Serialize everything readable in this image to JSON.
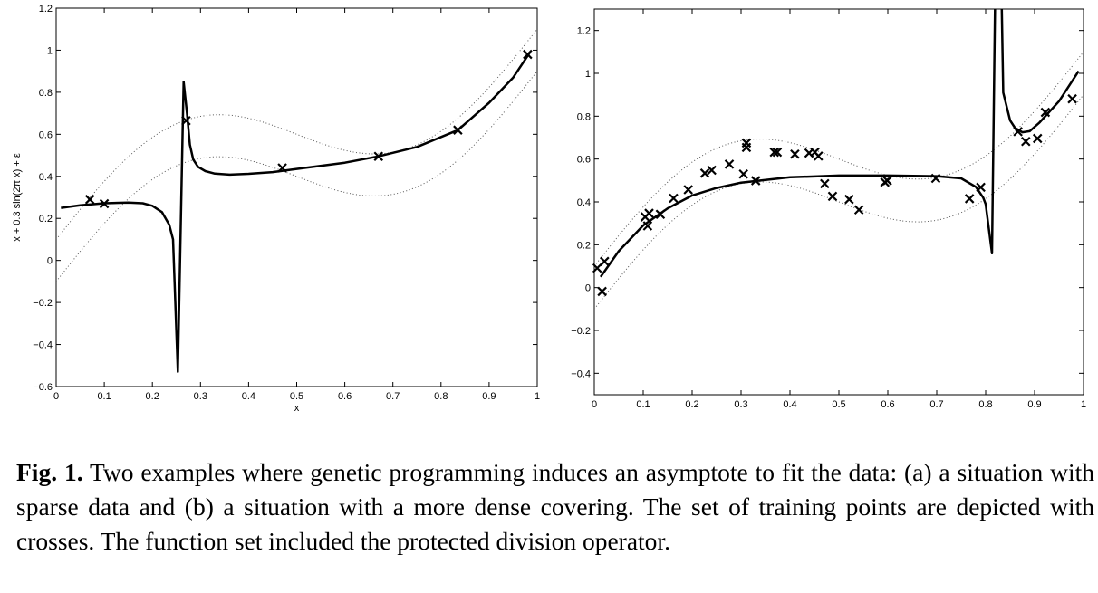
{
  "chart_data": [
    {
      "type": "scatter",
      "panel": "a",
      "xlabel": "x",
      "ylabel": "x + 0.3 sin(2π x) + ε",
      "xlim": [
        0,
        1
      ],
      "ylim": [
        -0.6,
        1.2
      ],
      "xticks": [
        "0",
        "0.1",
        "0.2",
        "0.3",
        "0.4",
        "0.5",
        "0.6",
        "0.7",
        "0.8",
        "0.9",
        "1"
      ],
      "yticks": [
        "−0.6",
        "−0.4",
        "−0.2",
        "0",
        "0.2",
        "0.4",
        "0.6",
        "0.8",
        "1",
        "1.2"
      ],
      "band": {
        "function": "x + 0.3 sin(2πx) ± 0.1",
        "style": "dotted"
      },
      "points": [
        [
          0.07,
          0.29
        ],
        [
          0.1,
          0.27
        ],
        [
          0.27,
          0.665
        ],
        [
          0.47,
          0.44
        ],
        [
          0.67,
          0.495
        ],
        [
          0.835,
          0.62
        ],
        [
          0.98,
          0.98
        ]
      ],
      "fit_curve": [
        [
          [
            0.01,
            0.25
          ],
          [
            0.05,
            0.262
          ],
          [
            0.1,
            0.272
          ],
          [
            0.15,
            0.275
          ],
          [
            0.18,
            0.272
          ],
          [
            0.2,
            0.26
          ],
          [
            0.22,
            0.23
          ],
          [
            0.235,
            0.17
          ],
          [
            0.243,
            0.1
          ],
          [
            0.253,
            -0.53
          ],
          [
            0.265,
            0.85
          ],
          [
            0.272,
            0.7
          ],
          [
            0.278,
            0.55
          ],
          [
            0.285,
            0.48
          ],
          [
            0.295,
            0.445
          ],
          [
            0.31,
            0.425
          ],
          [
            0.33,
            0.413
          ],
          [
            0.36,
            0.408
          ],
          [
            0.4,
            0.412
          ],
          [
            0.45,
            0.42
          ],
          [
            0.5,
            0.435
          ],
          [
            0.6,
            0.465
          ],
          [
            0.67,
            0.495
          ],
          [
            0.75,
            0.54
          ],
          [
            0.835,
            0.62
          ],
          [
            0.9,
            0.75
          ],
          [
            0.95,
            0.87
          ],
          [
            0.985,
            0.99
          ]
        ]
      ]
    },
    {
      "type": "scatter",
      "panel": "b",
      "xlim": [
        0,
        1
      ],
      "ylim": [
        -0.5,
        1.3
      ],
      "xticks": [
        "0",
        "0.1",
        "0.2",
        "0.3",
        "0.4",
        "0.5",
        "0.6",
        "0.7",
        "0.8",
        "0.9",
        "1"
      ],
      "yticks": [
        "−0.4",
        "−0.2",
        "0",
        "0.2",
        "0.4",
        "0.6",
        "0.8",
        "1",
        "1.2"
      ],
      "band": {
        "function": "x + 0.3 sin(2πx) ± 0.1",
        "style": "dotted"
      },
      "points": [
        [
          0.006,
          0.091
        ],
        [
          0.021,
          0.122
        ],
        [
          0.016,
          -0.018
        ],
        [
          0.104,
          0.33
        ],
        [
          0.112,
          0.347
        ],
        [
          0.109,
          0.288
        ],
        [
          0.135,
          0.342
        ],
        [
          0.162,
          0.417
        ],
        [
          0.192,
          0.457
        ],
        [
          0.226,
          0.534
        ],
        [
          0.24,
          0.548
        ],
        [
          0.276,
          0.576
        ],
        [
          0.305,
          0.53
        ],
        [
          0.311,
          0.675
        ],
        [
          0.311,
          0.654
        ],
        [
          0.33,
          0.499
        ],
        [
          0.368,
          0.632
        ],
        [
          0.374,
          0.632
        ],
        [
          0.41,
          0.623
        ],
        [
          0.439,
          0.628
        ],
        [
          0.451,
          0.632
        ],
        [
          0.458,
          0.614
        ],
        [
          0.471,
          0.485
        ],
        [
          0.487,
          0.426
        ],
        [
          0.521,
          0.412
        ],
        [
          0.541,
          0.363
        ],
        [
          0.594,
          0.492
        ],
        [
          0.599,
          0.499
        ],
        [
          0.698,
          0.51
        ],
        [
          0.767,
          0.415
        ],
        [
          0.79,
          0.468
        ],
        [
          0.866,
          0.728
        ],
        [
          0.882,
          0.682
        ],
        [
          0.906,
          0.696
        ],
        [
          0.922,
          0.818
        ],
        [
          0.977,
          0.881
        ]
      ],
      "fit_curve": [
        [
          [
            0.013,
            0.05
          ],
          [
            0.05,
            0.17
          ],
          [
            0.1,
            0.29
          ],
          [
            0.15,
            0.37
          ],
          [
            0.2,
            0.43
          ],
          [
            0.25,
            0.465
          ],
          [
            0.3,
            0.49
          ],
          [
            0.4,
            0.515
          ],
          [
            0.5,
            0.523
          ],
          [
            0.6,
            0.523
          ],
          [
            0.7,
            0.52
          ],
          [
            0.75,
            0.51
          ],
          [
            0.78,
            0.47
          ],
          [
            0.795,
            0.42
          ],
          [
            0.8,
            0.39
          ],
          [
            0.813,
            0.16
          ],
          [
            0.819,
            1.3
          ]
        ],
        [
          [
            0.833,
            1.3
          ],
          [
            0.836,
            0.91
          ],
          [
            0.85,
            0.78
          ],
          [
            0.86,
            0.745
          ],
          [
            0.875,
            0.725
          ],
          [
            0.89,
            0.73
          ],
          [
            0.91,
            0.77
          ],
          [
            0.95,
            0.87
          ],
          [
            0.99,
            1.01
          ]
        ]
      ]
    }
  ],
  "caption": {
    "label": "Fig. 1.",
    "text": "Two examples where genetic programming induces an asymptote to fit the data: (a) a situation with sparse data and (b) a situation with a more dense covering. The set of training points are depicted with crosses. The function set included the protected division operator."
  }
}
